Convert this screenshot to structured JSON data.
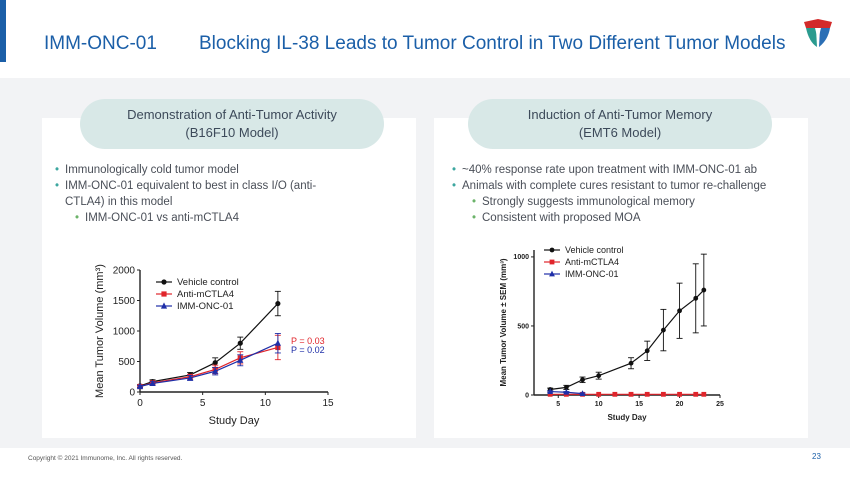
{
  "header": {
    "id": "IMM-ONC-01",
    "title": "Blocking IL-38 Leads to Tumor Control in Two Different Tumor Models"
  },
  "colors": {
    "brand_blue": "#1b5fa8",
    "pill_bg": "#d8e8e7",
    "vehicle": "#111111",
    "anti_mctla4": "#e0252b",
    "imm_onc_01": "#1f2fa8"
  },
  "left_panel": {
    "pill_line1": "Demonstration of Anti-Tumor Activity",
    "pill_line2": "(B16F10 Model)",
    "bullets": [
      "Immunologically cold tumor model",
      "IMM-ONC-01 equivalent to best in class I/O (anti-CTLA4) in this model"
    ],
    "sub_bullets": [
      "IMM-ONC-01 vs anti-mCTLA4"
    ]
  },
  "right_panel": {
    "pill_line1": "Induction of Anti-Tumor Memory",
    "pill_line2": "(EMT6 Model)",
    "bullets": [
      "~40% response rate upon treatment with IMM-ONC-01 ab",
      "Animals with complete cures resistant to tumor re-challenge"
    ],
    "sub_bullets": [
      "Strongly suggests immunological memory",
      "Consistent with proposed MOA"
    ]
  },
  "footer": {
    "copyright": "Copyright © 2021 Immunome, Inc. All rights reserved.",
    "page": "23"
  },
  "chart_data": [
    {
      "type": "line",
      "xlabel": "Study Day",
      "ylabel": "Mean Tumor Volume (mm³)",
      "xlim": [
        0,
        15
      ],
      "ylim": [
        0,
        2000
      ],
      "xticks": [
        "0",
        "5",
        "10",
        "15"
      ],
      "yticks": [
        "0",
        "500",
        "1000",
        "1500",
        "2000"
      ],
      "legend_placement": "top-left",
      "annotations": [
        "P = 0.03",
        "P = 0.02"
      ],
      "series": [
        {
          "name": "Vehicle control",
          "x": [
            0,
            1,
            4,
            6,
            8,
            11
          ],
          "y": [
            100,
            170,
            280,
            480,
            800,
            1450
          ],
          "err": [
            20,
            30,
            40,
            80,
            100,
            200
          ]
        },
        {
          "name": "Anti-mCTLA4",
          "x": [
            0,
            1,
            4,
            6,
            8,
            11
          ],
          "y": [
            90,
            150,
            250,
            370,
            560,
            730
          ],
          "err": [
            20,
            30,
            40,
            70,
            100,
            200
          ]
        },
        {
          "name": "IMM-ONC-01",
          "x": [
            0,
            1,
            4,
            6,
            8,
            11
          ],
          "y": [
            90,
            140,
            230,
            340,
            520,
            800
          ],
          "err": [
            20,
            30,
            40,
            60,
            90,
            160
          ]
        }
      ]
    },
    {
      "type": "line",
      "xlabel": "Study Day",
      "ylabel": "Mean Tumor Volume ± SEM (mm³)",
      "xlim": [
        2,
        25
      ],
      "ylim": [
        0,
        1050
      ],
      "xticks": [
        "5",
        "10",
        "15",
        "20",
        "25"
      ],
      "yticks": [
        "0",
        "500",
        "1000"
      ],
      "legend_placement": "top-left",
      "series": [
        {
          "name": "Vehicle control",
          "x": [
            4,
            6,
            8,
            10,
            14,
            16,
            18,
            20,
            22,
            23
          ],
          "y": [
            40,
            55,
            110,
            140,
            230,
            320,
            470,
            610,
            700,
            760
          ],
          "err": [
            10,
            15,
            20,
            25,
            40,
            70,
            150,
            200,
            250,
            260
          ]
        },
        {
          "name": "Anti-mCTLA4",
          "x": [
            4,
            6,
            8,
            10,
            12,
            14,
            16,
            18,
            20,
            22,
            23
          ],
          "y": [
            5,
            5,
            5,
            5,
            5,
            5,
            5,
            5,
            5,
            5,
            5
          ],
          "err": [
            0,
            0,
            0,
            0,
            0,
            0,
            0,
            0,
            0,
            0,
            0
          ]
        },
        {
          "name": "IMM-ONC-01",
          "x": [
            4,
            6,
            8
          ],
          "y": [
            25,
            20,
            10
          ],
          "err": [
            5,
            5,
            5
          ]
        }
      ]
    }
  ]
}
